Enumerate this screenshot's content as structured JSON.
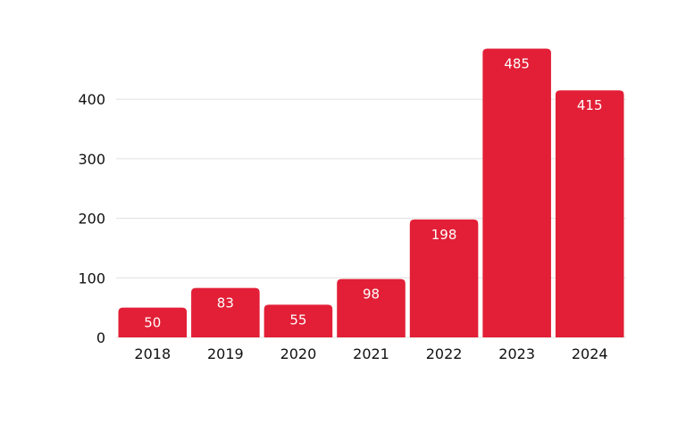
{
  "chart_data": {
    "type": "bar",
    "title": "",
    "xlabel": "",
    "ylabel": "",
    "categories": [
      "2018",
      "2019",
      "2020",
      "2021",
      "2022",
      "2023",
      "2024"
    ],
    "values": [
      50,
      83,
      55,
      98,
      198,
      485,
      415
    ],
    "y_ticks": [
      0,
      100,
      200,
      300,
      400
    ],
    "ylim": [
      0,
      500
    ],
    "grid": true,
    "legend": "none",
    "bar_color": "#E21F36",
    "grid_color": "#E0E0E0"
  }
}
